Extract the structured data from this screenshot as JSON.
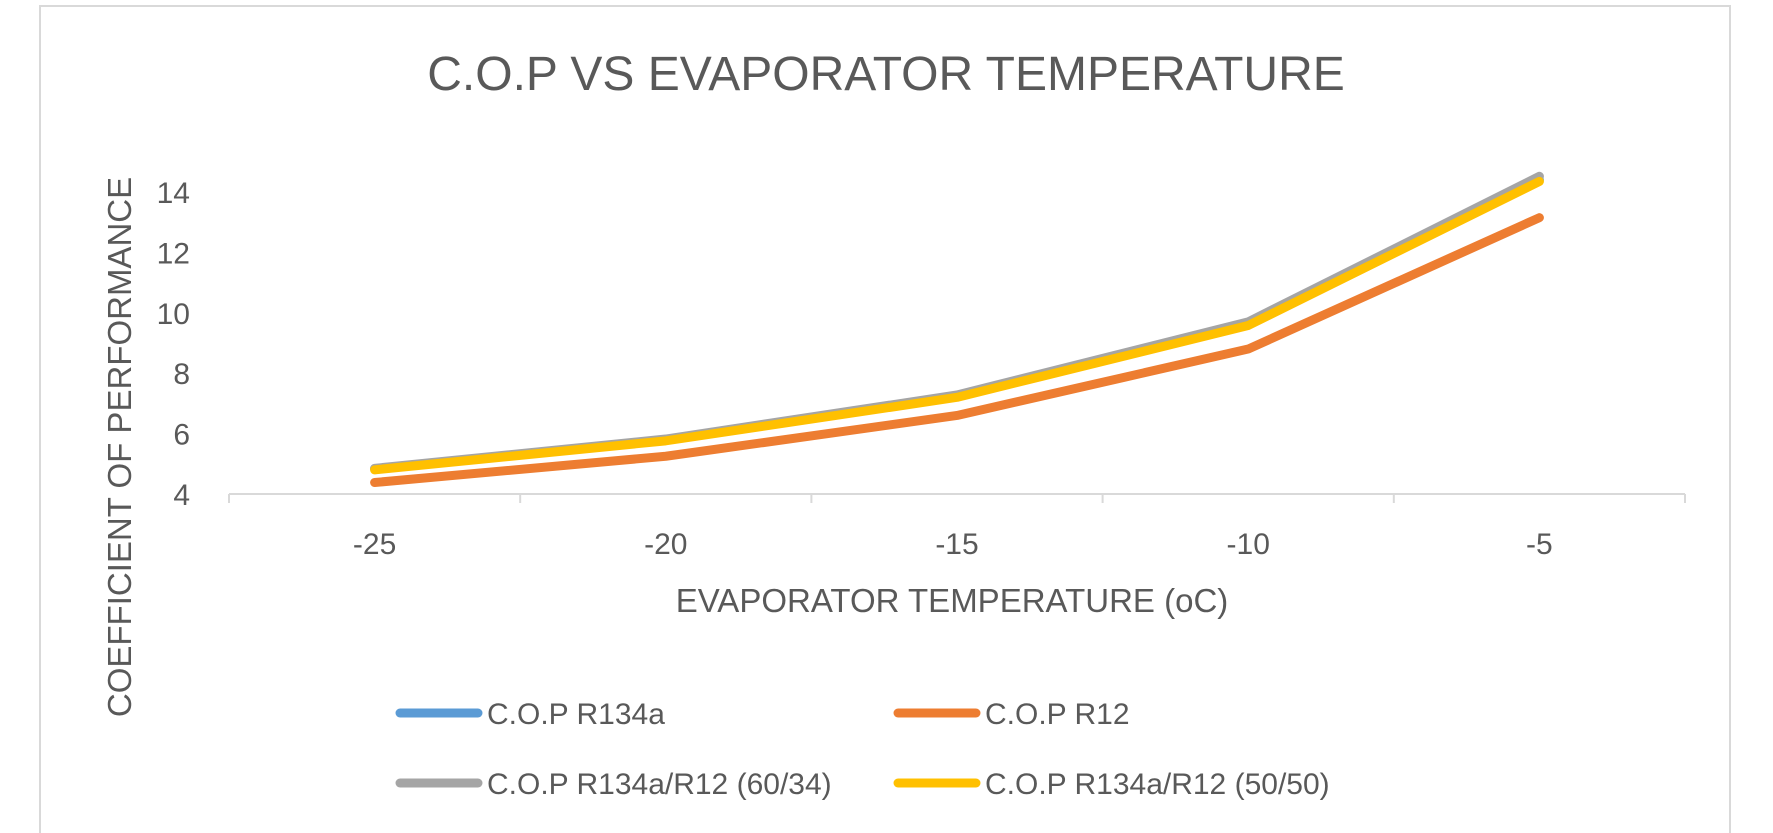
{
  "chart_data": {
    "type": "line",
    "title": "C.O.P VS EVAPORATOR TEMPERATURE",
    "xlabel": "EVAPORATOR TEMPERATURE (oC)",
    "ylabel": "COEFFICIENT OF PERFORMANCE",
    "categories": [
      "-25",
      "-20",
      "-15",
      "-10",
      "-5"
    ],
    "ylim": [
      4,
      14
    ],
    "yticks": [
      "4",
      "6",
      "8",
      "10",
      "12",
      "14"
    ],
    "grid": false,
    "legend_position": "bottom",
    "series": [
      {
        "name": "C.O.P  R134a",
        "color": "#5B9BD5",
        "values": [
          4.83,
          5.8,
          7.25,
          9.65,
          14.4
        ]
      },
      {
        "name": "C.O.P  R12",
        "color": "#ED7D31",
        "values": [
          4.38,
          5.25,
          6.6,
          8.8,
          13.15
        ]
      },
      {
        "name": "C.O.P  R134a/R12  (60/34)",
        "color": "#A5A5A5",
        "values": [
          4.85,
          5.82,
          7.28,
          9.7,
          14.52
        ]
      },
      {
        "name": "C.O.P  R134a/R12  (50/50)",
        "color": "#FFC000",
        "values": [
          4.8,
          5.76,
          7.2,
          9.58,
          14.35
        ]
      }
    ]
  }
}
